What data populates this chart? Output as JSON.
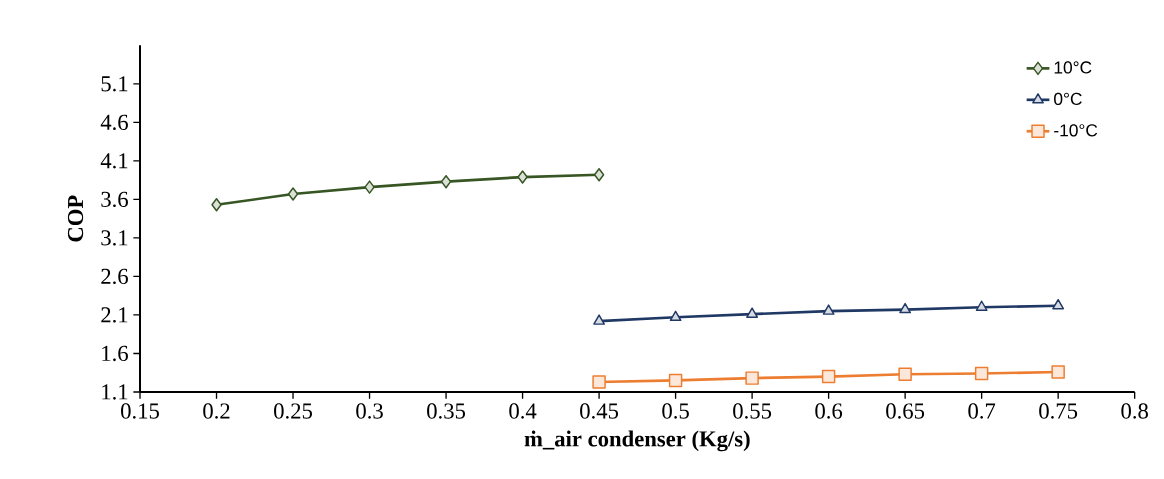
{
  "chart_data": {
    "type": "line",
    "xlabel": "ṁ_air condenser (Kg/s)",
    "ylabel": "COP",
    "xlim": [
      0.15,
      0.8
    ],
    "xticks": [
      0.15,
      0.2,
      0.25,
      0.3,
      0.35,
      0.4,
      0.45,
      0.5,
      0.55,
      0.6,
      0.65,
      0.7,
      0.75,
      0.8
    ],
    "ylim": [
      1.1,
      5.6
    ],
    "yticks": [
      1.1,
      1.6,
      2.1,
      2.6,
      3.1,
      3.6,
      4.1,
      4.6,
      5.1
    ],
    "legend": "top right",
    "grid": false,
    "series": [
      {
        "name": "10°C",
        "color": "#375623",
        "marker": "diamond",
        "x": [
          0.2,
          0.25,
          0.3,
          0.35,
          0.4,
          0.45
        ],
        "values": [
          3.53,
          3.67,
          3.76,
          3.83,
          3.89,
          3.92
        ]
      },
      {
        "name": "0°C",
        "color": "#203864",
        "marker": "triangle",
        "x": [
          0.45,
          0.5,
          0.55,
          0.6,
          0.65,
          0.7,
          0.75
        ],
        "values": [
          2.02,
          2.07,
          2.11,
          2.15,
          2.17,
          2.2,
          2.22
        ]
      },
      {
        "name": "-10°C",
        "color": "#ED7D31",
        "marker": "square",
        "x": [
          0.45,
          0.5,
          0.55,
          0.6,
          0.65,
          0.7,
          0.75
        ],
        "values": [
          1.23,
          1.25,
          1.28,
          1.3,
          1.33,
          1.34,
          1.36
        ]
      }
    ]
  }
}
